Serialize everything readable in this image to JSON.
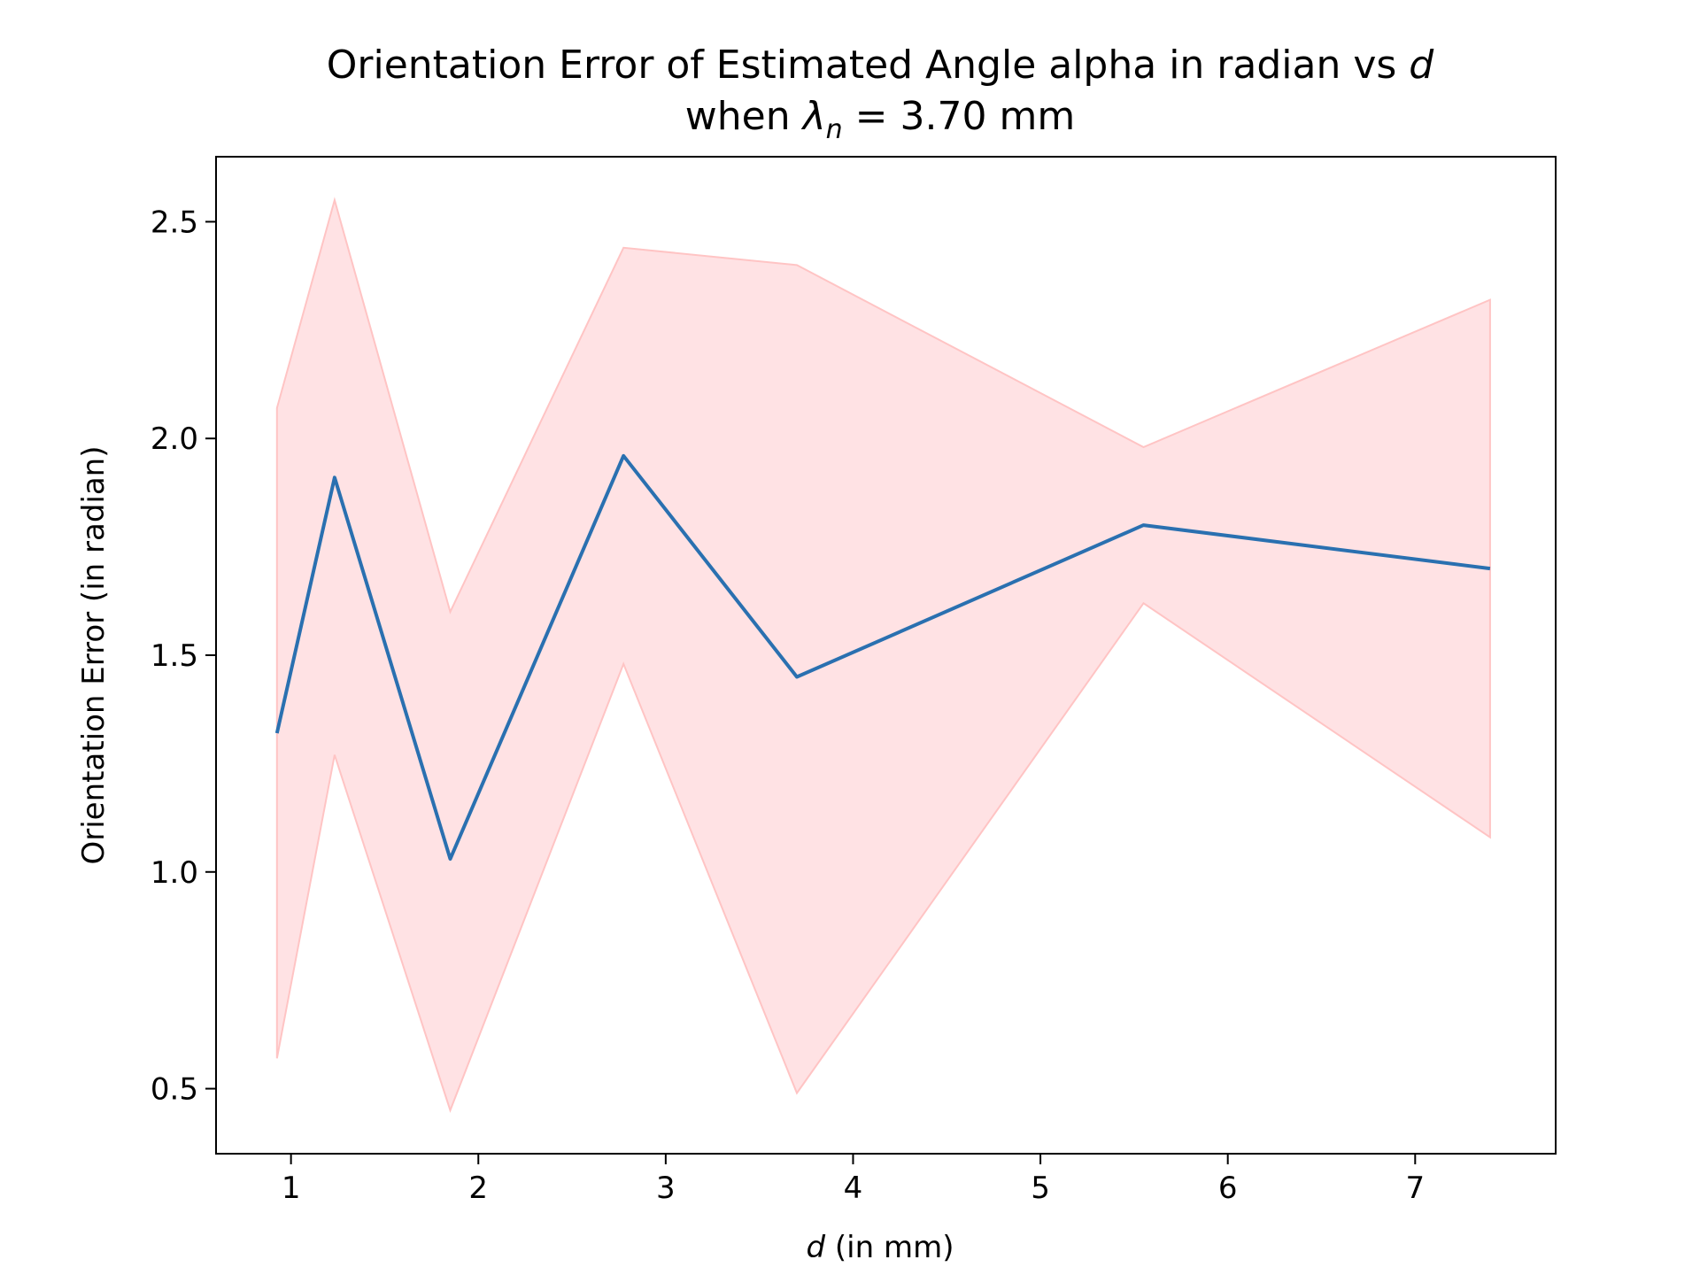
{
  "chart_data": {
    "type": "line",
    "title": "Orientation Error of Estimated Angle alpha in radian vs ",
    "title_var": "d",
    "subtitle_prefix": "when ",
    "subtitle_symbol": "λ",
    "subtitle_subscript": "n",
    "subtitle_suffix": " = 3.70 mm",
    "xlabel_var": "d",
    "xlabel": " (in mm)",
    "ylabel": "Orientation Error (in radian)",
    "xlim": [
      0.6,
      7.75
    ],
    "ylim": [
      0.35,
      2.65
    ],
    "x_ticks": [
      "1",
      "2",
      "3",
      "4",
      "5",
      "6",
      "7"
    ],
    "y_ticks": [
      "0.5",
      "1.0",
      "1.5",
      "2.0",
      "2.5"
    ],
    "grid": false,
    "series": [
      {
        "x": [
          0.925,
          1.233,
          1.85,
          2.775,
          3.7,
          5.55,
          7.4
        ],
        "y": [
          1.32,
          1.91,
          1.03,
          1.96,
          1.45,
          1.8,
          1.7
        ],
        "upper": [
          2.07,
          2.55,
          1.6,
          2.44,
          2.4,
          1.98,
          2.32
        ],
        "lower": [
          0.57,
          1.27,
          0.45,
          1.48,
          0.49,
          1.62,
          1.08
        ],
        "color": "#2a70b0",
        "band_color": "#ffb6bc",
        "band_edge_color": "#ffc4c4"
      }
    ]
  }
}
